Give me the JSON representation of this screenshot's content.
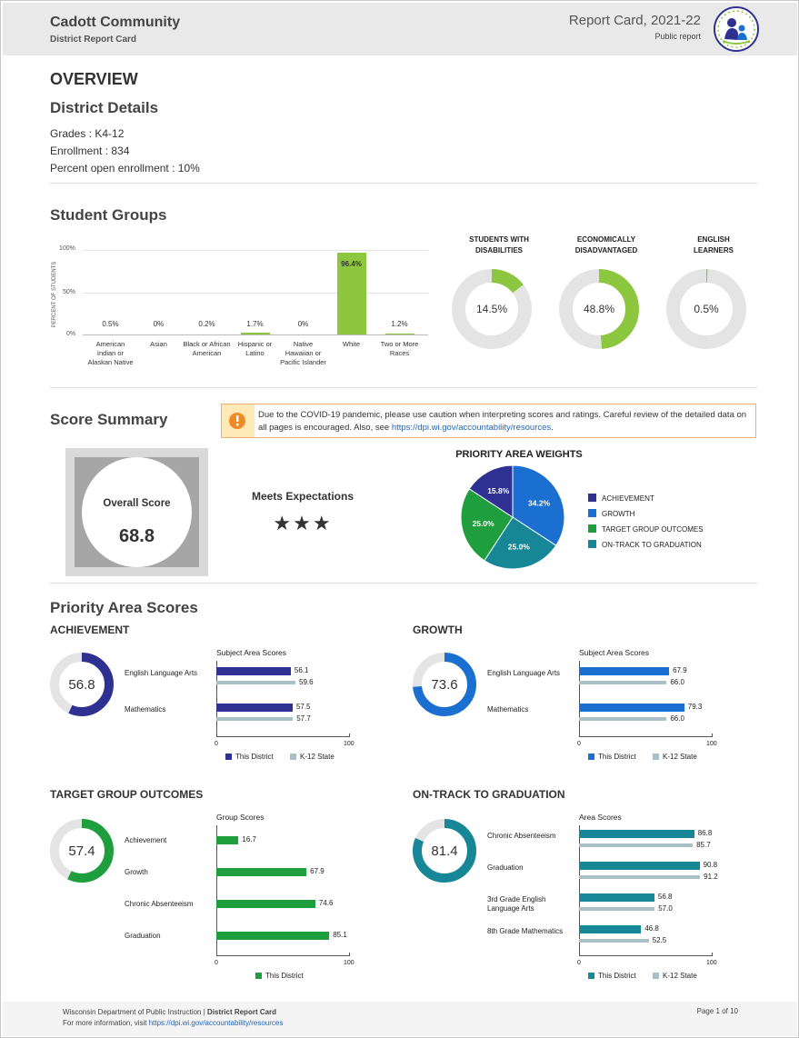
{
  "header": {
    "district": "Cadott Community",
    "subtitle": "District Report Card",
    "report_year": "Report Card, 2021-22",
    "public": "Public report"
  },
  "overview": {
    "title": "OVERVIEW",
    "details_title": "District Details",
    "grades_label": "Grades :",
    "grades": "K4-12",
    "enrollment_label": "Enrollment :",
    "enrollment": "834",
    "open_label": "Percent open enrollment :",
    "open": "10%"
  },
  "student_groups": {
    "title": "Student Groups",
    "y_axis_label": "PERCENT OF STUDENTS",
    "donuts": [
      {
        "title1": "STUDENTS WITH",
        "title2": "DISABILITIES",
        "value": "14.5%",
        "pct": 14.5
      },
      {
        "title1": "ECONOMICALLY",
        "title2": "DISADVANTAGED",
        "value": "48.8%",
        "pct": 48.8
      },
      {
        "title1": "ENGLISH",
        "title2": "LEARNERS",
        "value": "0.5%",
        "pct": 0.5
      }
    ]
  },
  "chart_data": {
    "type": "bar",
    "title": "Student Groups",
    "ylabel": "PERCENT OF STUDENTS",
    "ylim": [
      0,
      100
    ],
    "yticks": [
      "100%",
      "50%",
      "0%"
    ],
    "categories": [
      [
        "American",
        "Indian or",
        "Alaskan Native"
      ],
      [
        "Asian"
      ],
      [
        "Black or African",
        "American"
      ],
      [
        "Hispanic or",
        "Latino"
      ],
      [
        "Native",
        "Hawaiian or",
        "Pacific Islander"
      ],
      [
        "White"
      ],
      [
        "Two or More",
        "Races"
      ]
    ],
    "values": [
      0.5,
      0,
      0.2,
      1.7,
      0,
      96.4,
      1.2
    ],
    "labels": [
      "0.5%",
      "0%",
      "0.2%",
      "1.7%",
      "0%",
      "96.4%",
      "1.2%"
    ]
  },
  "score_summary": {
    "title": "Score Summary",
    "alert_text": "Due to the COVID-19 pandemic, please use caution when interpreting scores and ratings. Careful review of the detailed data on all pages is encouraged. Also, see ",
    "alert_link": "https://dpi.wi.gov/accountability/resources",
    "alert_end": ".",
    "overall_label": "Overall Score",
    "overall_value": "68.8",
    "rating": "Meets Expectations",
    "stars": "★★★",
    "weights_title": "PRIORITY AREA WEIGHTS",
    "weights": [
      {
        "name": "ACHIEVEMENT",
        "value": 15.8,
        "label": "15.8%",
        "color": "#2e3192"
      },
      {
        "name": "GROWTH",
        "value": 34.2,
        "label": "34.2%",
        "color": "#1a6fd1"
      },
      {
        "name": "TARGET GROUP OUTCOMES",
        "value": 25.0,
        "label": "25.0%",
        "color": "#1e9e3c"
      },
      {
        "name": "ON-TRACK TO GRADUATION",
        "value": 25.0,
        "label": "25.0%",
        "color": "#178697"
      }
    ]
  },
  "priority": {
    "title": "Priority Area Scores",
    "achievement": {
      "title": "ACHIEVEMENT",
      "score": "56.8",
      "pct": 56.8,
      "color": "#2e3192",
      "sub_title": "Subject Area Scores",
      "rows": [
        {
          "label": "English Language Arts",
          "district": 56.1,
          "state": 59.6,
          "dl": "56.1",
          "sl": "59.6"
        },
        {
          "label": "Mathematics",
          "district": 57.5,
          "state": 57.7,
          "dl": "57.5",
          "sl": "57.7"
        }
      ],
      "legend_district": "This District",
      "legend_state": "K-12 State"
    },
    "growth": {
      "title": "GROWTH",
      "score": "73.6",
      "pct": 73.6,
      "color": "#1a6fd1",
      "sub_title": "Subject Area Scores",
      "rows": [
        {
          "label": "English Language Arts",
          "district": 67.9,
          "state": 66.0,
          "dl": "67.9",
          "sl": "66.0"
        },
        {
          "label": "Mathematics",
          "district": 79.3,
          "state": 66.0,
          "dl": "79.3",
          "sl": "66.0"
        }
      ],
      "legend_district": "This District",
      "legend_state": "K-12 State"
    },
    "target": {
      "title": "TARGET GROUP OUTCOMES",
      "score": "57.4",
      "pct": 57.4,
      "color": "#1e9e3c",
      "sub_title": "Group Scores",
      "rows": [
        {
          "label": "Achievement",
          "district": 16.7,
          "dl": "16.7"
        },
        {
          "label": "Growth",
          "district": 67.9,
          "dl": "67.9"
        },
        {
          "label": "Chronic Absenteeism",
          "district": 74.6,
          "dl": "74.6"
        },
        {
          "label": "Graduation",
          "district": 85.1,
          "dl": "85.1"
        }
      ],
      "legend_district": "This District"
    },
    "ontrack": {
      "title": "ON-TRACK TO GRADUATION",
      "score": "81.4",
      "pct": 81.4,
      "color": "#178697",
      "sub_title": "Area Scores",
      "rows": [
        {
          "label": "Chronic Absenteeism",
          "district": 86.8,
          "state": 85.7,
          "dl": "86.8",
          "sl": "85.7"
        },
        {
          "label": "Graduation",
          "district": 90.8,
          "state": 91.2,
          "dl": "90.8",
          "sl": "91.2"
        },
        {
          "label": "3rd Grade English Language Arts",
          "district": 56.8,
          "state": 57.0,
          "dl": "56.8",
          "sl": "57.0"
        },
        {
          "label": "8th Grade Mathematics",
          "district": 46.8,
          "state": 52.5,
          "dl": "46.8",
          "sl": "52.5"
        }
      ],
      "legend_district": "This District",
      "legend_state": "K-12 State"
    },
    "axis_min": "0",
    "axis_max": "100"
  },
  "footer": {
    "org": "Wisconsin Department of Public Instruction |",
    "doc": "District Report Card",
    "more": "For more information, visit ",
    "link": "https://dpi.wi.gov/accountability/resources",
    "page": "Page 1 of 10"
  }
}
